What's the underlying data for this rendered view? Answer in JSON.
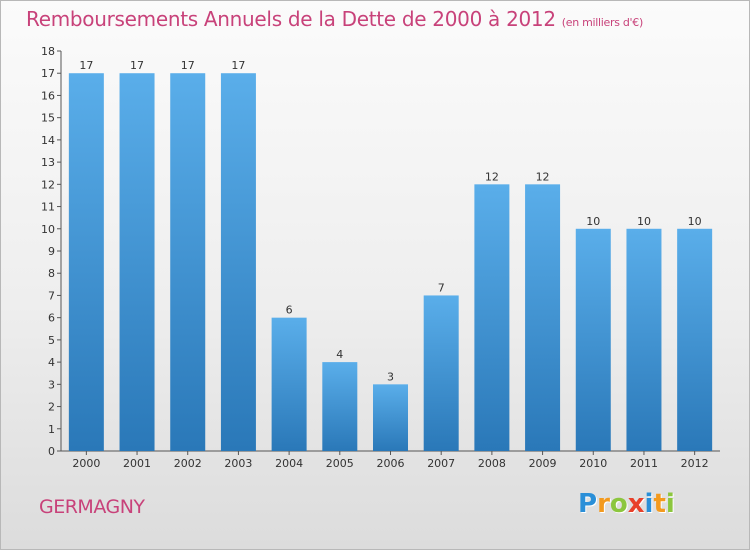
{
  "chart_data": {
    "type": "bar",
    "title": "Remboursements Annuels de la Dette de 2000 à 2012",
    "subtitle": "(en milliers d'€)",
    "categories": [
      "2000",
      "2001",
      "2002",
      "2003",
      "2004",
      "2005",
      "2006",
      "2007",
      "2008",
      "2009",
      "2010",
      "2011",
      "2012"
    ],
    "values": [
      17,
      17,
      17,
      17,
      6,
      4,
      3,
      7,
      12,
      12,
      10,
      10,
      10
    ],
    "ylim": [
      0,
      18
    ],
    "yticks": [
      "0",
      "1",
      "2",
      "3",
      "4",
      "5",
      "6",
      "7",
      "8",
      "9",
      "10",
      "11",
      "12",
      "13",
      "14",
      "15",
      "16",
      "17",
      "18"
    ],
    "grid": false,
    "xlabel": "",
    "ylabel": "",
    "bar_color_top": "#5aaeea",
    "bar_color_bottom": "#2a78b8"
  },
  "commune": "GERMAGNY",
  "logo": {
    "text": "Proxiti",
    "letters": [
      {
        "ch": "P",
        "color": "#2a8fd8"
      },
      {
        "ch": "r",
        "color": "#f39a1e"
      },
      {
        "ch": "o",
        "color": "#8cc63e"
      },
      {
        "ch": "x",
        "color": "#e8402a"
      },
      {
        "ch": "i",
        "color": "#2a8fd8"
      },
      {
        "ch": "t",
        "color": "#f39a1e"
      },
      {
        "ch": "i",
        "color": "#8cc63e"
      }
    ]
  },
  "colors": {
    "title": "#c8427a",
    "axis": "#555555"
  }
}
